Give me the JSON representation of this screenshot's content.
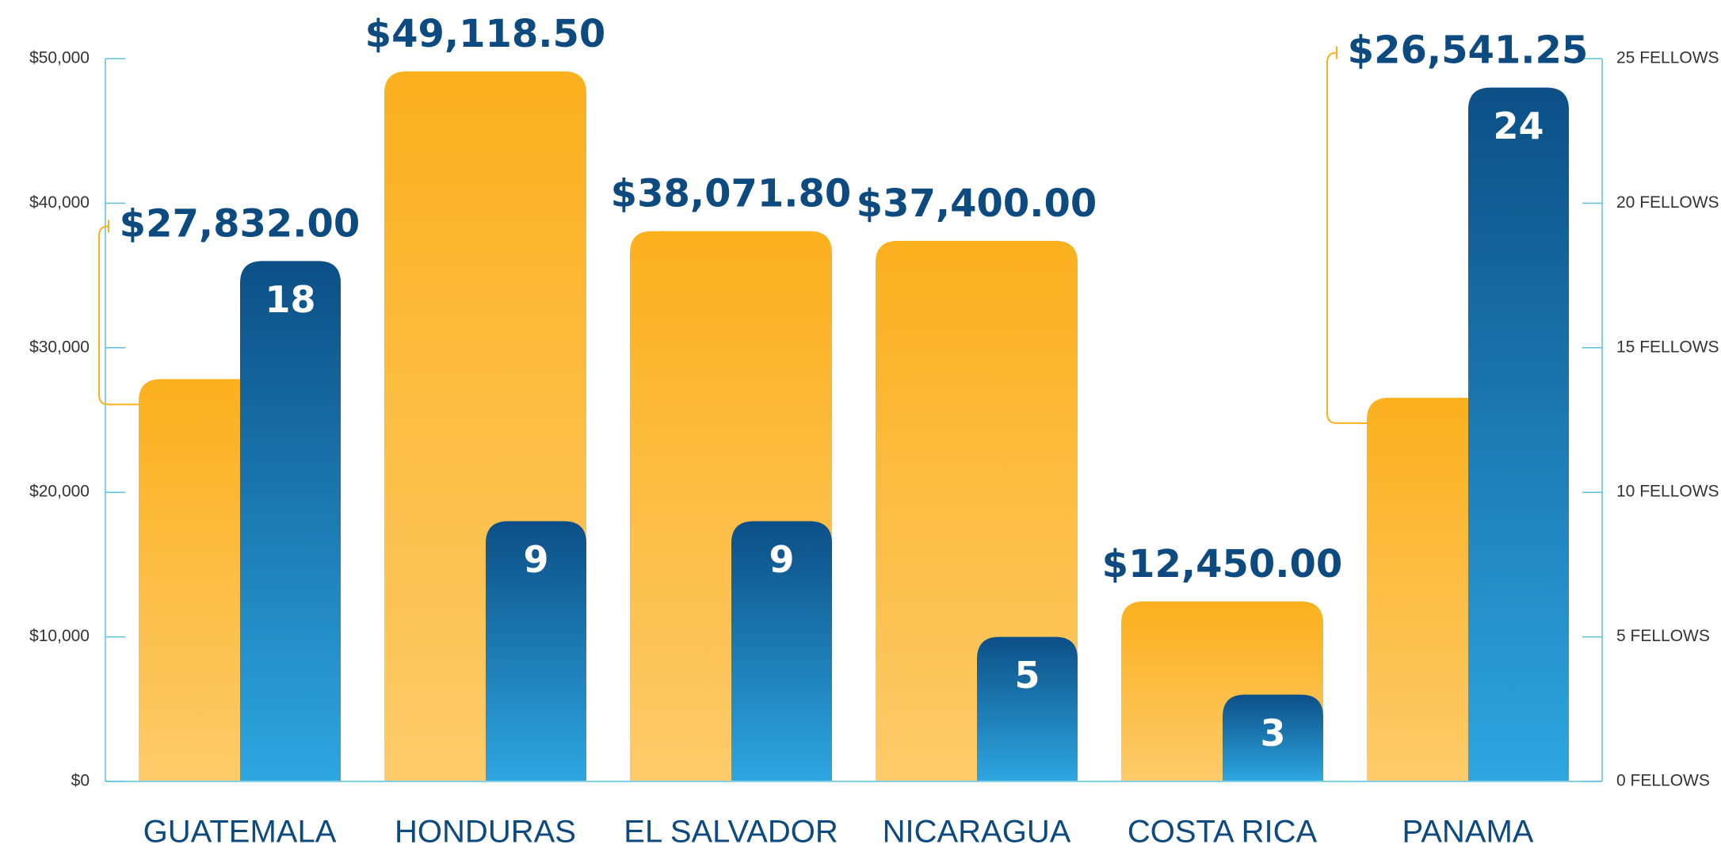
{
  "chart_data": {
    "type": "bar",
    "categories": [
      "GUATEMALA",
      "HONDURAS",
      "EL SALVADOR",
      "NICARAGUA",
      "COSTA RICA",
      "PANAMA"
    ],
    "series": [
      {
        "color": "#fbb01e",
        "values": [
          27832,
          49118.5,
          38071.8,
          37400,
          12450,
          26541.25
        ],
        "value_labels": [
          "$27,832.00",
          "$49,118.50",
          "$38,071.80",
          "$37,400.00",
          "$12,450.00",
          "$26,541.25"
        ]
      },
      {
        "color": "#0c4f86",
        "axis": "y2",
        "values": [
          18,
          9,
          9,
          5,
          3,
          24
        ]
      }
    ],
    "ylim": [
      0,
      50000
    ],
    "yticks": [
      {
        "value": 0,
        "label": "$0"
      },
      {
        "value": 10000,
        "label": "$10,000"
      },
      {
        "value": 20000,
        "label": "$20,000"
      },
      {
        "value": 30000,
        "label": "$30,000"
      },
      {
        "value": 40000,
        "label": "$40,000"
      },
      {
        "value": 50000,
        "label": "$50,000"
      }
    ],
    "y2lim": [
      0,
      25
    ],
    "y2ticks": [
      {
        "value": 0,
        "label": "0 FELLOWS"
      },
      {
        "value": 5,
        "label": "5 FELLOWS"
      },
      {
        "value": 10,
        "label": "10 FELLOWS"
      },
      {
        "value": 15,
        "label": "15 FELLOWS"
      },
      {
        "value": 20,
        "label": "20 FELLOWS"
      },
      {
        "value": 25,
        "label": "25 FELLOWS"
      }
    ]
  }
}
